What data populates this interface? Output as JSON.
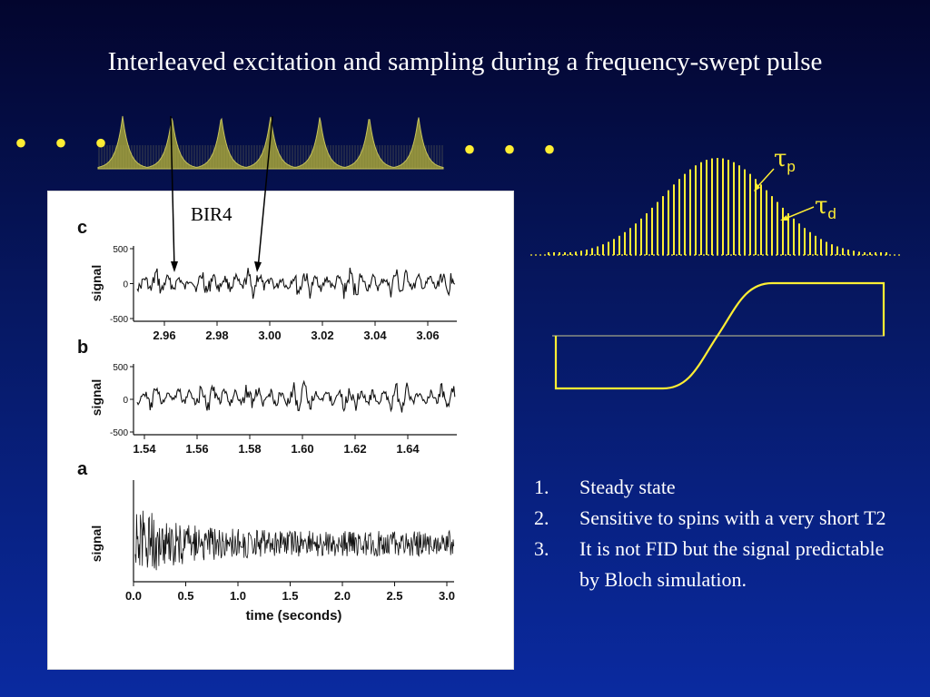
{
  "slide": {
    "title": "Interleaved excitation and sampling during a frequency-swept pulse",
    "dots": "• • •",
    "bir4_label": "BIR4"
  },
  "pulse_diagram": {
    "tau_p": "τ",
    "tau_p_sub": "p",
    "tau_d": "τ",
    "tau_d_sub": "d",
    "accent_color": "#ffee33"
  },
  "figure": {
    "panels": [
      {
        "label": "c",
        "ylabel": "signal",
        "yticks": [
          "500",
          "0",
          "-500"
        ],
        "xticks": [
          "2.96",
          "2.98",
          "3.00",
          "3.02",
          "3.04",
          "3.06"
        ]
      },
      {
        "label": "b",
        "ylabel": "signal",
        "yticks": [
          "500",
          "0",
          "-500"
        ],
        "xticks": [
          "1.54",
          "1.56",
          "1.58",
          "1.60",
          "1.62",
          "1.64"
        ]
      },
      {
        "label": "a",
        "ylabel": "signal",
        "yticks": [],
        "xticks": [
          "0.0",
          "0.5",
          "1.0",
          "1.5",
          "2.0",
          "2.5",
          "3.0"
        ],
        "xlabel": "time (seconds)"
      }
    ]
  },
  "points": [
    {
      "num": "1.",
      "text": "Steady state"
    },
    {
      "num": "2.",
      "text": "Sensitive to spins with a very short T2"
    },
    {
      "num": "3.",
      "text": "It is not FID but the signal predictable by Bloch simulation."
    }
  ]
}
